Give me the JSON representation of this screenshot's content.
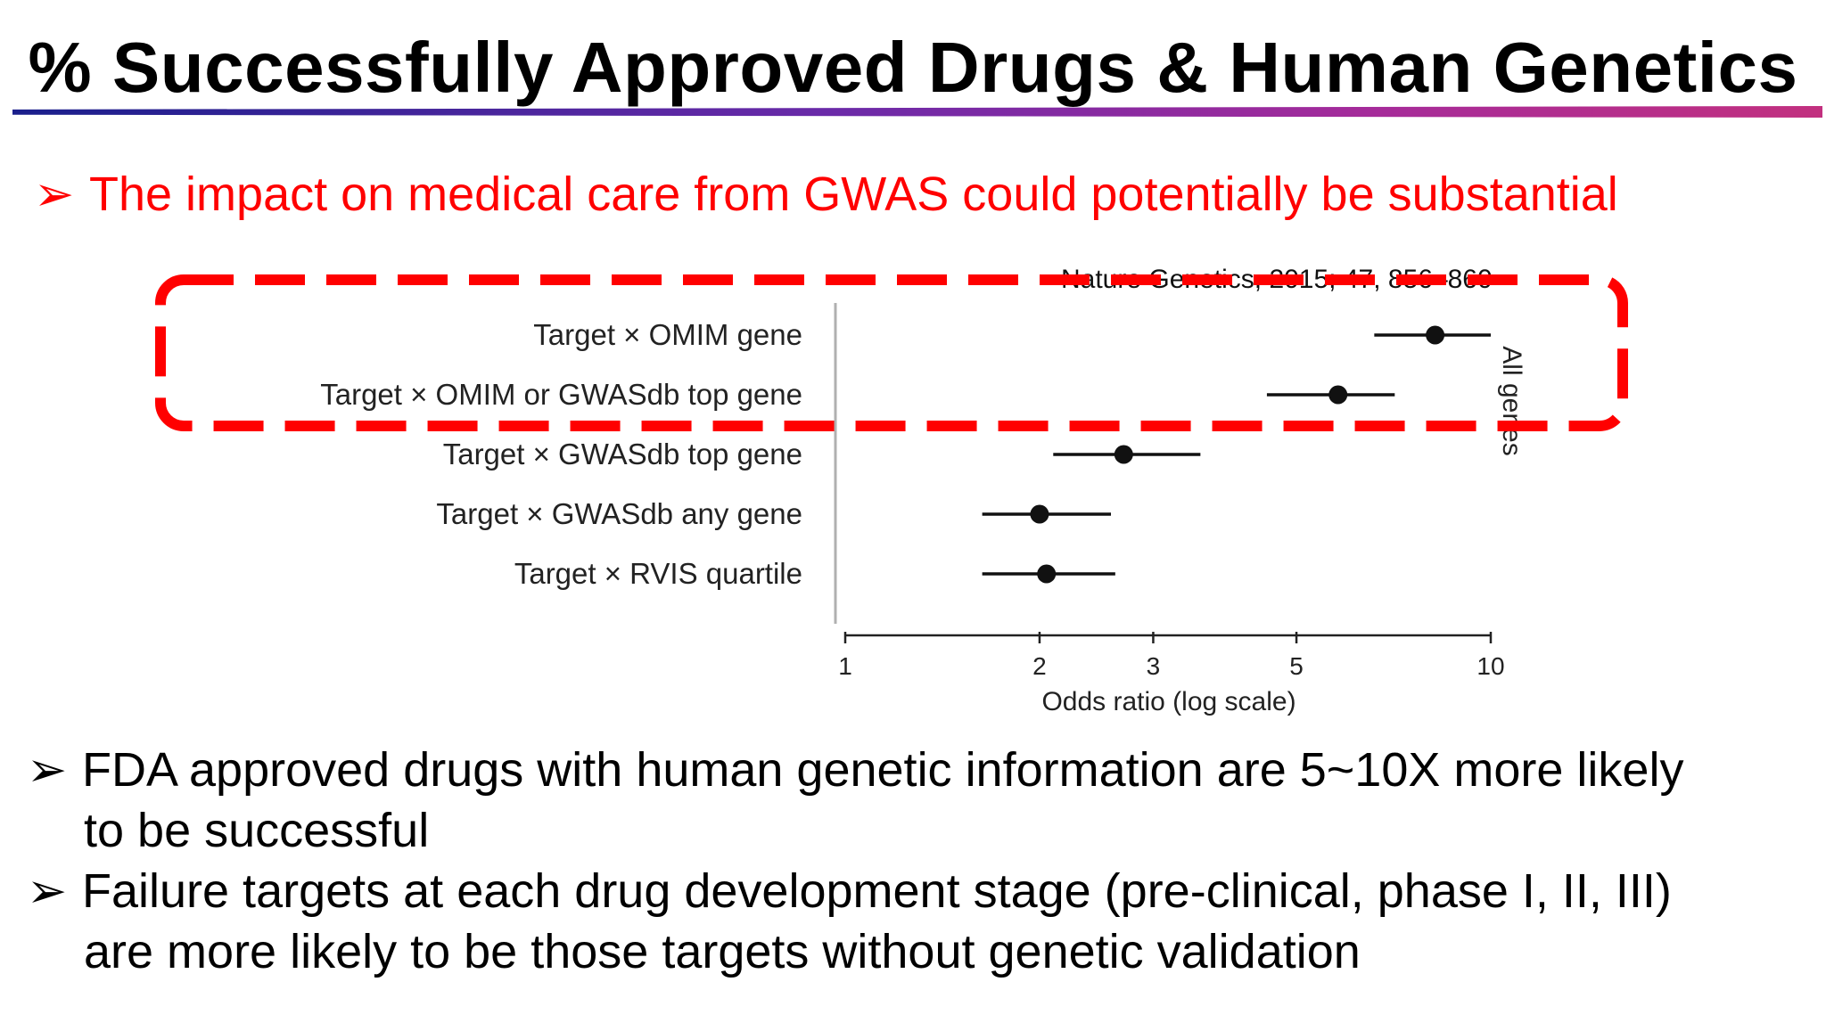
{
  "slide": {
    "title": "% Successfully Approved Drugs & Human Genetics",
    "bullets": [
      {
        "arrow": "➢",
        "text": "The impact on medical care from GWAS could potentially be substantial",
        "color": "#ff0000"
      },
      {
        "arrow": "➢",
        "line1": "FDA approved drugs with human genetic information are 5~10X more likely",
        "line2": "to be successful"
      },
      {
        "arrow": "➢",
        "line1": "Failure targets at each drug development stage (pre-clinical, phase I, II, III)",
        "line2": "are more likely to be those targets without genetic validation"
      }
    ],
    "citation": "Nature Genetics, 2015; 47, 856–860",
    "highlight_color": "#ff0000"
  },
  "chart_data": {
    "type": "scatter",
    "subtype": "forest-plot",
    "xlabel": "Odds ratio (log scale)",
    "x_scale": "log",
    "xlim": [
      1,
      10
    ],
    "x_ticks": [
      1,
      2,
      3,
      5,
      10
    ],
    "x_tick_labels": [
      "1",
      "2",
      "3",
      "5",
      "10"
    ],
    "group_label": "All genes",
    "categories": [
      "Target × OMIM gene",
      "Target × OMIM or GWASdb top gene",
      "Target × GWASdb top gene",
      "Target × GWASdb any gene",
      "Target × RVIS quartile"
    ],
    "series": [
      {
        "estimate": [
          8.2,
          5.8,
          2.7,
          2.0,
          2.05
        ],
        "ci_low": [
          6.6,
          4.5,
          2.1,
          1.63,
          1.63
        ],
        "ci_high": [
          10.0,
          7.1,
          3.55,
          2.58,
          2.62
        ]
      }
    ],
    "highlighted_categories": [
      "Target × OMIM gene",
      "Target × OMIM or GWASdb top gene"
    ],
    "grid": false,
    "legend": "none"
  }
}
